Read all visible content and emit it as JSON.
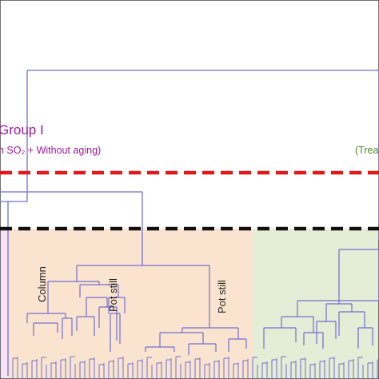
{
  "chart_data": {
    "type": "dendrogram",
    "title": "",
    "colors": {
      "frame": "#444444",
      "branch": "#6f6fd0",
      "group_label": "#a0179f",
      "right_label": "#4f8a22",
      "red_cut": "#e01a1a",
      "black_cut": "#111111",
      "region_pink": "#f7e3f5",
      "region_orange": "#fbe4cf",
      "region_green": "#e4edd5"
    },
    "group_label": "Group I",
    "group_subtitle": "h SO₂ + Without aging)",
    "right_label": "(Trea",
    "cluster_labels": [
      "Column",
      "Pot still",
      "Pot still"
    ],
    "cut_lines": [
      {
        "name": "red",
        "style": "dashed"
      },
      {
        "name": "black",
        "style": "dashed"
      }
    ],
    "regions": [
      "pink",
      "orange",
      "green"
    ]
  }
}
